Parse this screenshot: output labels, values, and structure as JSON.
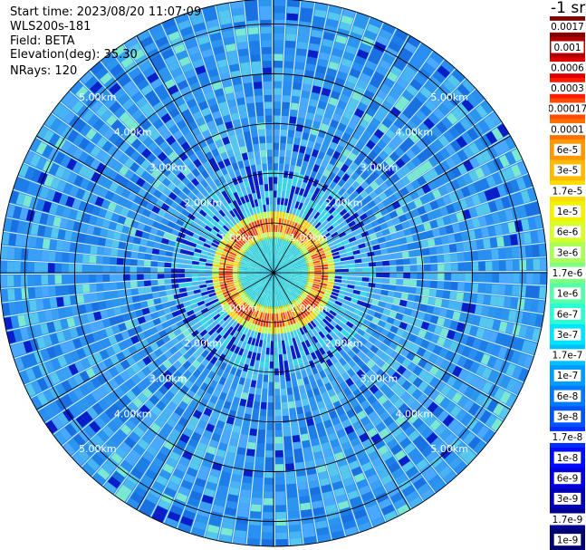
{
  "header": {
    "start_time": "Start time: 2023/08/20 11:07:09",
    "device": "WLS200s-181",
    "field": "Field: BETA",
    "elevation": "Elevation(deg): 35.30",
    "nrays": "NRays: 120"
  },
  "colorbar": {
    "unit_label": "-1 sr",
    "ticks": [
      "0.0017",
      "0.001",
      "0.0006",
      "0.0003",
      "0.00017",
      "0.0001",
      "6e-5",
      "3e-5",
      "1.7e-5",
      "1e-5",
      "6e-6",
      "3e-6",
      "1.7e-6",
      "1e-6",
      "6e-7",
      "3e-7",
      "1.7e-7",
      "1e-7",
      "6e-8",
      "3e-8",
      "1.7e-8",
      "1e-8",
      "6e-9",
      "3e-9",
      "1.7e-9",
      "1e-9"
    ],
    "colors": [
      "#800000",
      "#b00000",
      "#dd0000",
      "#ff1a00",
      "#ff4a00",
      "#ff7000",
      "#ff9800",
      "#ffba00",
      "#ffdc00",
      "#f2f200",
      "#d6ff28",
      "#aaff55",
      "#7dff82",
      "#55ffaa",
      "#2affd4",
      "#00e4ff",
      "#00c0ff",
      "#009cff",
      "#0078ff",
      "#0054ff",
      "#0030ff",
      "#000cff",
      "#0000e0",
      "#0000b8",
      "#000090",
      "#000070"
    ]
  },
  "chart_data": {
    "type": "heatmap",
    "projection": "polar PPI scan",
    "range_rings_km": [
      1,
      2,
      3,
      4,
      5
    ],
    "range_labels": [
      "1.00km",
      "2.00km",
      "3.00km",
      "4.00km",
      "5.00km"
    ],
    "max_range_km": 5.5,
    "n_rays": 120,
    "spokes_deg": [
      0,
      30,
      60,
      90,
      120,
      150,
      180,
      210,
      240,
      270,
      300,
      330
    ],
    "aerosol_ring_range_km": 1.0,
    "colors": {
      "background_field": "#1e8cf0",
      "near_core": "#5ae6dc",
      "ring_peak": "#ff3a00",
      "ring_edge": "#ffd400",
      "low_signal": "#0a1ec8"
    }
  }
}
